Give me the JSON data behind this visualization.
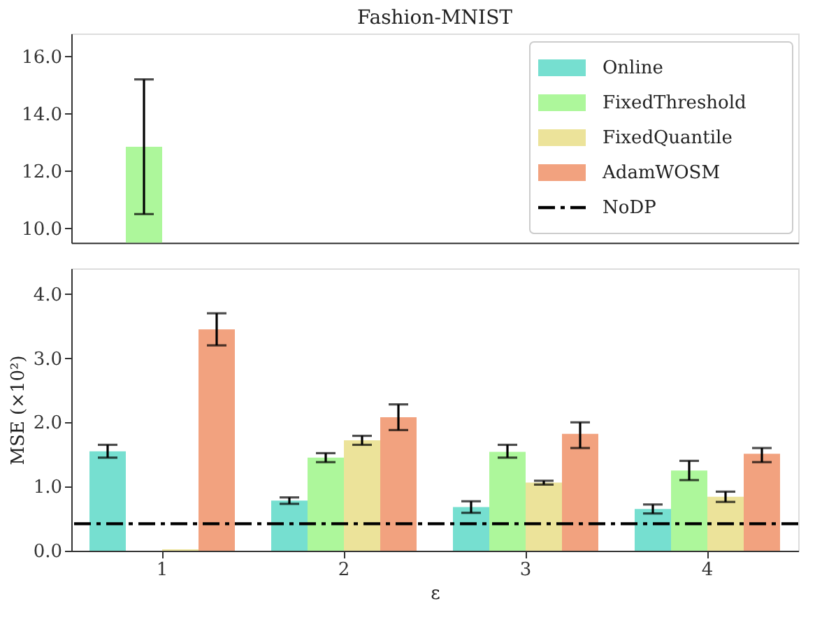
{
  "chart_data": [
    {
      "type": "bar",
      "title": "Fashion-MNIST",
      "categories": [
        "1",
        "2",
        "3",
        "4"
      ],
      "series": [
        {
          "name": "Online",
          "color": "#76dfd0",
          "values": [
            null,
            null,
            null,
            null
          ]
        },
        {
          "name": "FixedThreshold",
          "color": "#adf79b",
          "values": [
            12.85,
            null,
            null,
            null
          ],
          "errors": [
            [
              10.5,
              15.2
            ],
            null,
            null,
            null
          ]
        },
        {
          "name": "FixedQuantile",
          "color": "#ece39a",
          "values": [
            null,
            null,
            null,
            null
          ]
        },
        {
          "name": "AdamWOSM",
          "color": "#f2a27f",
          "values": [
            null,
            null,
            null,
            null
          ]
        }
      ],
      "ylim": [
        9.5,
        16.8
      ],
      "yticks": [
        {
          "value": 10,
          "label": "10.0"
        },
        {
          "value": 12,
          "label": "12.0"
        },
        {
          "value": 14,
          "label": "14.0"
        },
        {
          "value": 16,
          "label": "16.0"
        }
      ],
      "tick_labels": "y",
      "legend": "top right",
      "grid": false
    },
    {
      "type": "bar",
      "xlabel": "ε",
      "ylabel": "MSE (×10²)",
      "categories": [
        "1",
        "2",
        "3",
        "4"
      ],
      "series": [
        {
          "color": "#76dfd0",
          "values": [
            1.55,
            0.78,
            0.68,
            0.65
          ],
          "errors": [
            0.1,
            0.05,
            0.09,
            0.07
          ]
        },
        {
          "color": "#adf79b",
          "values": [
            null,
            1.45,
            1.54,
            1.25
          ],
          "errors": [
            null,
            [
              1.38,
              1.52
            ],
            [
              1.45,
              1.65
            ],
            [
              1.1,
              1.4
            ]
          ]
        },
        {
          "color": "#ece39a",
          "values": [
            0.02,
            1.72,
            1.06,
            0.84
          ],
          "errors": [
            null,
            0.07,
            0.03,
            0.08
          ]
        },
        {
          "color": "#f2a27f",
          "values": [
            3.45,
            2.08,
            1.82,
            1.51
          ],
          "errors": [
            [
              3.2,
              3.7
            ],
            [
              1.88,
              2.28
            ],
            [
              1.6,
              2.0
            ],
            [
              1.38,
              1.6
            ]
          ]
        }
      ],
      "ref_lines": [
        {
          "axis": "y",
          "value": 0.42,
          "label": "NoDP",
          "color": "#000000",
          "line_style": "dashed"
        }
      ],
      "ylim": [
        0,
        4.4
      ],
      "yticks": [
        {
          "value": 0,
          "label": "0.0"
        },
        {
          "value": 1,
          "label": "1.0"
        },
        {
          "value": 2,
          "label": "2.0"
        },
        {
          "value": 3,
          "label": "3.0"
        },
        {
          "value": 4,
          "label": "4.0"
        }
      ],
      "grid": false
    }
  ]
}
